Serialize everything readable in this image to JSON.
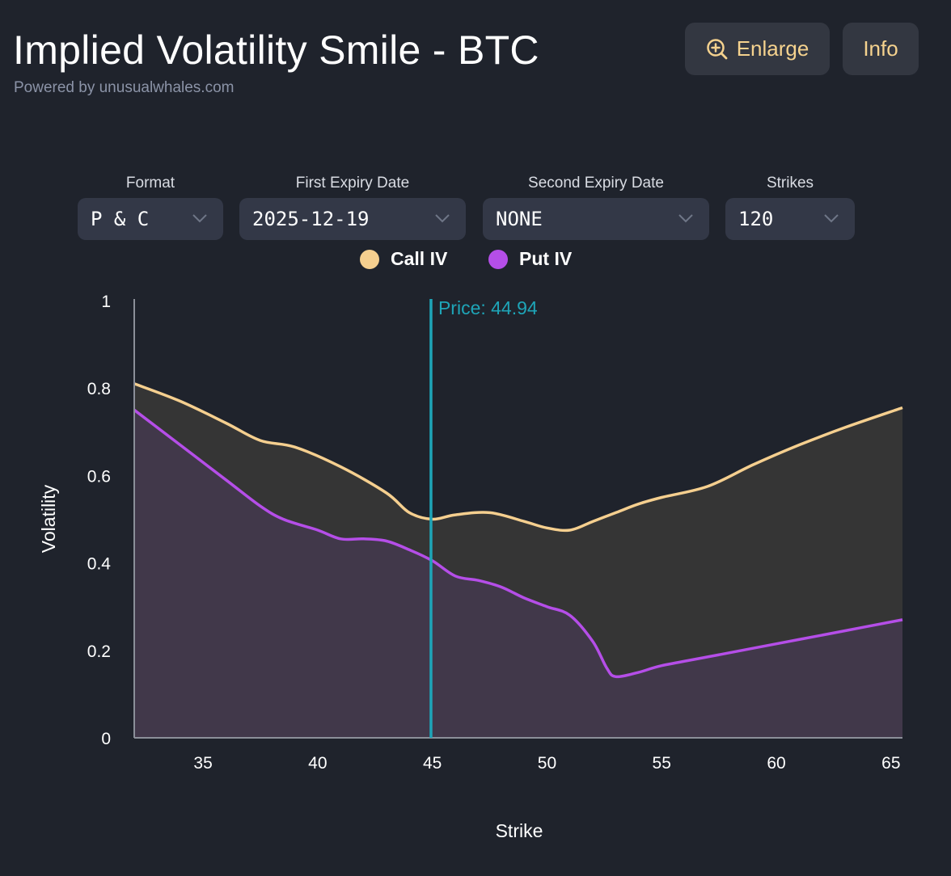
{
  "header": {
    "title": "Implied Volatility Smile - BTC",
    "subtitle": "Powered by unusualwhales.com",
    "enlarge_label": "Enlarge",
    "info_label": "Info"
  },
  "controls": {
    "format": {
      "label": "Format",
      "value": "P & C"
    },
    "first_expiry": {
      "label": "First Expiry Date",
      "value": "2025-12-19"
    },
    "second_expiry": {
      "label": "Second Expiry Date",
      "value": "NONE"
    },
    "strikes": {
      "label": "Strikes",
      "value": "120"
    }
  },
  "colors": {
    "call": "#f5cf8f",
    "put": "#b54ee8",
    "price_line": "#1ea5b8",
    "accent": "#f5d28e"
  },
  "chart_data": {
    "type": "line",
    "title": "Implied Volatility Smile - BTC",
    "xlabel": "Strike",
    "ylabel": "Volatility",
    "xlim": [
      32,
      65.5
    ],
    "ylim": [
      0,
      1
    ],
    "xticks": [
      35,
      40,
      45,
      50,
      55,
      60,
      65
    ],
    "yticks": [
      0,
      0.2,
      0.4,
      0.6,
      0.8,
      1
    ],
    "price": {
      "label": "Price: 44.94",
      "value": 44.94
    },
    "legend_position": "top-center",
    "series": [
      {
        "name": "Call IV",
        "x": [
          32,
          34,
          36,
          37.5,
          39,
          41,
          43,
          44,
          45,
          46,
          47.5,
          49,
          50,
          51,
          52,
          53,
          54,
          55,
          57,
          59,
          61,
          63,
          65.5
        ],
        "y": [
          0.81,
          0.77,
          0.72,
          0.68,
          0.665,
          0.62,
          0.56,
          0.515,
          0.5,
          0.51,
          0.515,
          0.495,
          0.48,
          0.475,
          0.495,
          0.515,
          0.535,
          0.55,
          0.575,
          0.625,
          0.67,
          0.71,
          0.755
        ]
      },
      {
        "name": "Put IV",
        "x": [
          32,
          34,
          36,
          37.5,
          38.5,
          40,
          41,
          42,
          43,
          44,
          45,
          46,
          47,
          48,
          49,
          50,
          51,
          52,
          52.6,
          53,
          54,
          55,
          57,
          60,
          63,
          65.5
        ],
        "y": [
          0.75,
          0.67,
          0.59,
          0.53,
          0.5,
          0.475,
          0.455,
          0.455,
          0.45,
          0.43,
          0.405,
          0.37,
          0.36,
          0.345,
          0.32,
          0.3,
          0.28,
          0.22,
          0.16,
          0.14,
          0.15,
          0.165,
          0.185,
          0.215,
          0.245,
          0.27
        ]
      }
    ]
  }
}
